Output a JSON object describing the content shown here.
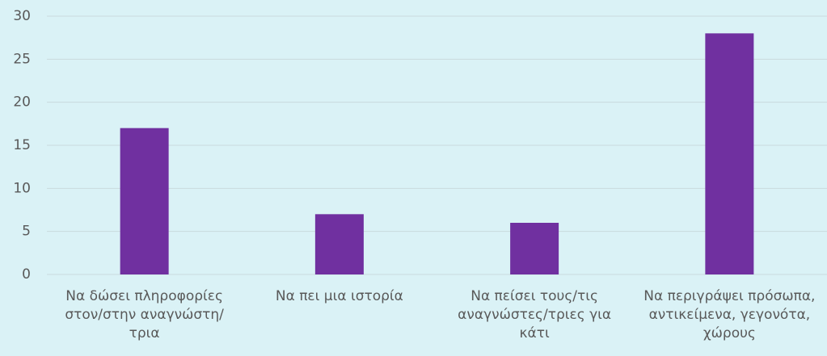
{
  "chart_data": {
    "type": "bar",
    "categories": [
      "Να δώσει πληροφορίες στον/στην αναγνώστη/τρια",
      "Να πει μια ιστορία",
      "Να πείσει τους/τις αναγνώστες/τριες για κάτι",
      "Να περιγράψει πρόσωπα, αντικείμενα, γεγονότα, χώρους"
    ],
    "values": [
      17,
      7,
      6,
      28
    ],
    "color": "#7030a0",
    "ylim": [
      0,
      30
    ],
    "yticks": [
      0,
      5,
      10,
      15,
      20,
      25,
      30
    ],
    "grid": true
  }
}
